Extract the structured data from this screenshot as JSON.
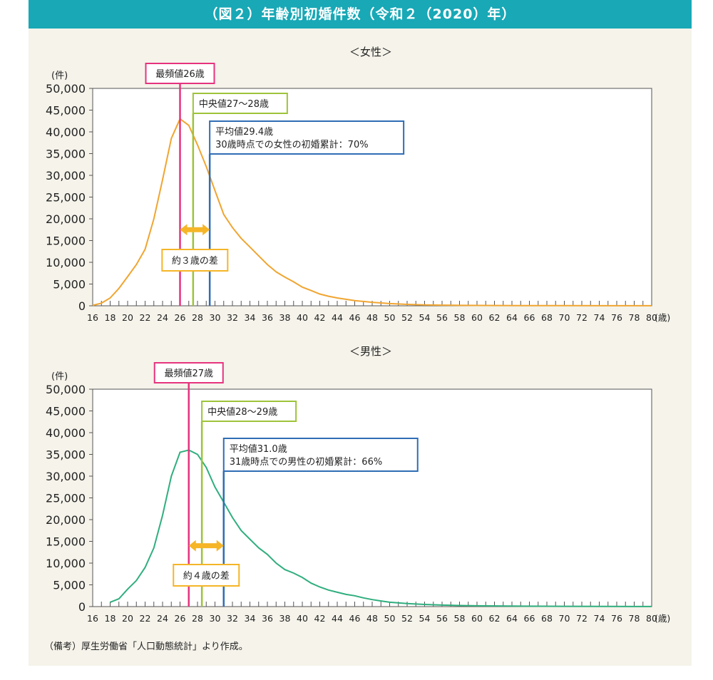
{
  "title": "（図２）年齢別初婚件数（令和２（2020）年）",
  "note": "（備考）厚生労働省「人口動態統計」より作成。",
  "colors": {
    "header_bg": "#18a8b6",
    "panel_bg": "#f5f3ea",
    "mode": "#e6337e",
    "median": "#9ec33a",
    "mean": "#2f6db5",
    "gap": "#f5b527",
    "female_line": "#f0a531",
    "male_line": "#2fae7e"
  },
  "chart_data": [
    {
      "type": "line",
      "subtitle": "＜女性＞",
      "yunit": "(件)",
      "xunit": "(歳)",
      "ylim": [
        0,
        50000
      ],
      "xlim": [
        16,
        80
      ],
      "yticks": [
        "50,000",
        "45,000",
        "40,000",
        "35,000",
        "30,000",
        "25,000",
        "20,000",
        "15,000",
        "10,000",
        "5,000",
        "0"
      ],
      "xticks": [
        "16",
        "18",
        "20",
        "22",
        "24",
        "26",
        "28",
        "30",
        "32",
        "34",
        "36",
        "38",
        "40",
        "42",
        "44",
        "46",
        "48",
        "50",
        "52",
        "54",
        "56",
        "58",
        "60",
        "62",
        "64",
        "66",
        "68",
        "70",
        "72",
        "74",
        "76",
        "78",
        "80"
      ],
      "series": [
        {
          "color": "#f0a531",
          "x": [
            16,
            17,
            18,
            19,
            20,
            21,
            22,
            23,
            24,
            25,
            26,
            27,
            28,
            29,
            30,
            31,
            32,
            33,
            34,
            35,
            36,
            37,
            38,
            39,
            40,
            41,
            42,
            43,
            44,
            45,
            46,
            47,
            48,
            49,
            50,
            52,
            54,
            56,
            58,
            60,
            65,
            70,
            75,
            80
          ],
          "y": [
            100,
            600,
            1800,
            4000,
            6700,
            9500,
            13000,
            20000,
            29000,
            38500,
            43000,
            41500,
            37000,
            32000,
            26500,
            21000,
            18000,
            15500,
            13500,
            11500,
            9500,
            7800,
            6600,
            5500,
            4300,
            3500,
            2700,
            2200,
            1800,
            1500,
            1200,
            1000,
            800,
            650,
            500,
            330,
            220,
            150,
            100,
            80,
            50,
            30,
            20,
            10
          ]
        }
      ],
      "annotations": {
        "mode": {
          "label": "最頻値26歳",
          "x": 26
        },
        "median": {
          "label": "中央値27～28歳",
          "x": 27.5
        },
        "mean": {
          "label_line1": "平均値29.4歳",
          "label_line2": "30歳時点での女性の初婚累計：70%",
          "x": 29.4
        },
        "gap": {
          "label": "約３歳の差",
          "y": 17500
        }
      }
    },
    {
      "type": "line",
      "subtitle": "＜男性＞",
      "yunit": "(件)",
      "xunit": "(歳)",
      "ylim": [
        0,
        50000
      ],
      "xlim": [
        16,
        80
      ],
      "yticks": [
        "50,000",
        "45,000",
        "40,000",
        "35,000",
        "30,000",
        "25,000",
        "20,000",
        "15,000",
        "10,000",
        "5,000",
        "0"
      ],
      "xticks": [
        "16",
        "18",
        "20",
        "22",
        "24",
        "26",
        "28",
        "30",
        "32",
        "34",
        "36",
        "38",
        "40",
        "42",
        "44",
        "46",
        "48",
        "50",
        "52",
        "54",
        "56",
        "58",
        "60",
        "62",
        "64",
        "66",
        "68",
        "70",
        "72",
        "74",
        "76",
        "78",
        "80"
      ],
      "series": [
        {
          "color": "#2fae7e",
          "x": [
            18,
            19,
            20,
            21,
            22,
            23,
            24,
            25,
            26,
            27,
            28,
            29,
            30,
            31,
            32,
            33,
            34,
            35,
            36,
            37,
            38,
            39,
            40,
            41,
            42,
            43,
            44,
            45,
            46,
            47,
            48,
            49,
            50,
            52,
            54,
            56,
            58,
            60,
            65,
            70,
            75,
            80
          ],
          "y": [
            1000,
            1800,
            4000,
            6000,
            9000,
            13500,
            21000,
            30000,
            35500,
            36000,
            35000,
            32000,
            27500,
            24000,
            20500,
            17500,
            15500,
            13500,
            12000,
            10000,
            8500,
            7700,
            6700,
            5400,
            4500,
            3800,
            3300,
            2800,
            2500,
            2000,
            1600,
            1300,
            1000,
            700,
            500,
            350,
            250,
            180,
            100,
            60,
            30,
            20
          ]
        }
      ],
      "annotations": {
        "mode": {
          "label": "最頻値27歳",
          "x": 27
        },
        "median": {
          "label": "中央値28～29歳",
          "x": 28.5
        },
        "mean": {
          "label_line1": "平均値31.0歳",
          "label_line2": "31歳時点での男性の初婚累計：66%",
          "x": 31.0
        },
        "gap": {
          "label": "約４歳の差",
          "y": 14000
        }
      }
    }
  ]
}
